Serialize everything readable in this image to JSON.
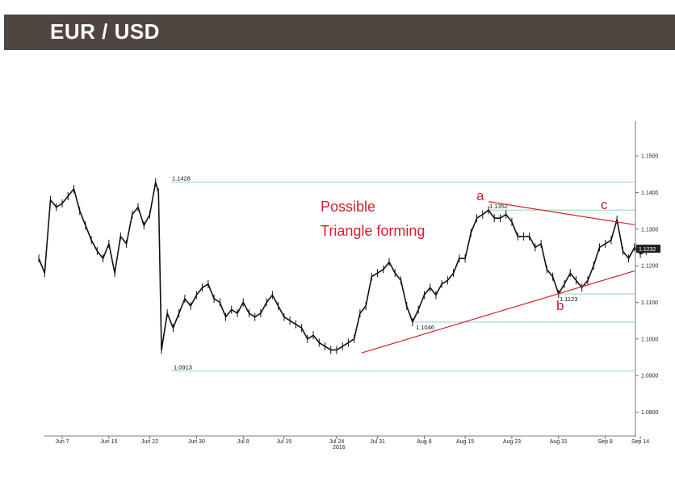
{
  "header": {
    "title": "EUR / USD"
  },
  "chart_data": {
    "type": "line",
    "title": "",
    "xlabel": "",
    "ylabel": "",
    "ylim": [
      1.0735,
      1.1595
    ],
    "y_ticks": [
      "1.0800",
      "1.0900",
      "1.1000",
      "1.1100",
      "1.1200",
      "1.1300",
      "1.1400",
      "1.1500"
    ],
    "x_ticks": [
      "Jun 7",
      "Jun 15",
      "Jun 22",
      "Jun 30",
      "Jul 8",
      "Jul 15",
      "Jul 24",
      "Jul 31",
      "Aug 8",
      "Aug 15",
      "Aug 23",
      "Aug 31",
      "Sep 8",
      "Sep 14"
    ],
    "x_tick_year": "2016",
    "series": [
      {
        "x": [
          "Jun 3",
          "Jun 4",
          "Jun 5",
          "Jun 6",
          "Jun 7",
          "Jun 8",
          "Jun 9",
          "Jun 10",
          "Jun 11",
          "Jun 12",
          "Jun 13",
          "Jun 14",
          "Jun 15",
          "Jun 16",
          "Jun 17",
          "Jun 18",
          "Jun 19",
          "Jun 20",
          "Jun 21",
          "Jun 22",
          "Jun 23",
          "Jun 23.5",
          "Jun 24",
          "Jun 25",
          "Jun 26",
          "Jun 27",
          "Jun 28",
          "Jun 29",
          "Jun 30",
          "Jul 1",
          "Jul 2",
          "Jul 3",
          "Jul 4",
          "Jul 5",
          "Jul 6",
          "Jul 7",
          "Jul 8",
          "Jul 9",
          "Jul 10",
          "Jul 11",
          "Jul 12",
          "Jul 13",
          "Jul 14",
          "Jul 15",
          "Jul 16",
          "Jul 17",
          "Jul 18",
          "Jul 19",
          "Jul 20",
          "Jul 21",
          "Jul 22",
          "Jul 23",
          "Jul 24",
          "Jul 25",
          "Jul 26",
          "Jul 27",
          "Jul 28",
          "Jul 29",
          "Jul 30",
          "Jul 31",
          "Aug 1",
          "Aug 2",
          "Aug 3",
          "Aug 4",
          "Aug 5",
          "Aug 6",
          "Aug 7",
          "Aug 8",
          "Aug 9",
          "Aug 10",
          "Aug 11",
          "Aug 12",
          "Aug 13",
          "Aug 14",
          "Aug 15",
          "Aug 16",
          "Aug 17",
          "Aug 18",
          "Aug 19",
          "Aug 20",
          "Aug 21",
          "Aug 22",
          "Aug 23",
          "Aug 24",
          "Aug 25",
          "Aug 26",
          "Aug 27",
          "Aug 28",
          "Aug 29",
          "Aug 30",
          "Aug 31",
          "Sep 1",
          "Sep 2",
          "Sep 3",
          "Sep 4",
          "Sep 5",
          "Sep 6",
          "Sep 7",
          "Sep 8",
          "Sep 9",
          "Sep 10",
          "Sep 11",
          "Sep 12",
          "Sep 13",
          "Sep 14",
          "Sep 15"
        ],
        "values": [
          1.122,
          1.118,
          1.138,
          1.136,
          1.137,
          1.139,
          1.141,
          1.135,
          1.131,
          1.127,
          1.124,
          1.122,
          1.126,
          1.118,
          1.128,
          1.126,
          1.134,
          1.136,
          1.131,
          1.134,
          1.1428,
          1.14,
          1.097,
          1.107,
          1.103,
          1.107,
          1.111,
          1.109,
          1.112,
          1.114,
          1.115,
          1.111,
          1.11,
          1.106,
          1.108,
          1.107,
          1.11,
          1.107,
          1.106,
          1.107,
          1.11,
          1.112,
          1.109,
          1.106,
          1.105,
          1.104,
          1.103,
          1.1,
          1.101,
          1.099,
          1.098,
          1.097,
          1.097,
          1.098,
          1.099,
          1.1,
          1.107,
          1.109,
          1.117,
          1.118,
          1.119,
          1.121,
          1.118,
          1.116,
          1.109,
          1.1046,
          1.108,
          1.112,
          1.114,
          1.112,
          1.115,
          1.116,
          1.118,
          1.122,
          1.122,
          1.129,
          1.133,
          1.134,
          1.1352,
          1.133,
          1.133,
          1.134,
          1.132,
          1.128,
          1.128,
          1.128,
          1.125,
          1.126,
          1.119,
          1.117,
          1.1123,
          1.115,
          1.118,
          1.116,
          1.114,
          1.116,
          1.12,
          1.125,
          1.126,
          1.127,
          1.1326,
          1.124,
          1.122,
          1.125,
          1.1232,
          1.124
        ]
      }
    ],
    "reference_levels": [
      {
        "value": 1.1428,
        "label": "1.1428"
      },
      {
        "value": 1.1352,
        "label": "1.1352"
      },
      {
        "value": 1.1123,
        "label": "1.1123"
      },
      {
        "value": 1.1046,
        "label": "1.1046"
      },
      {
        "value": 1.0913,
        "label": "1.0913"
      }
    ],
    "last_price": "1.1232",
    "annotations": {
      "triangle_text": [
        "Possible",
        "Triangle forming"
      ],
      "wave_labels": [
        "a",
        "b",
        "c"
      ]
    },
    "colors": {
      "price_line": "#111111",
      "reference_lines": "#7fcfb0",
      "trend_lines": "#d3202a",
      "annotation_text": "#d3202a",
      "header_background": "#4f4641"
    },
    "grid": false
  }
}
